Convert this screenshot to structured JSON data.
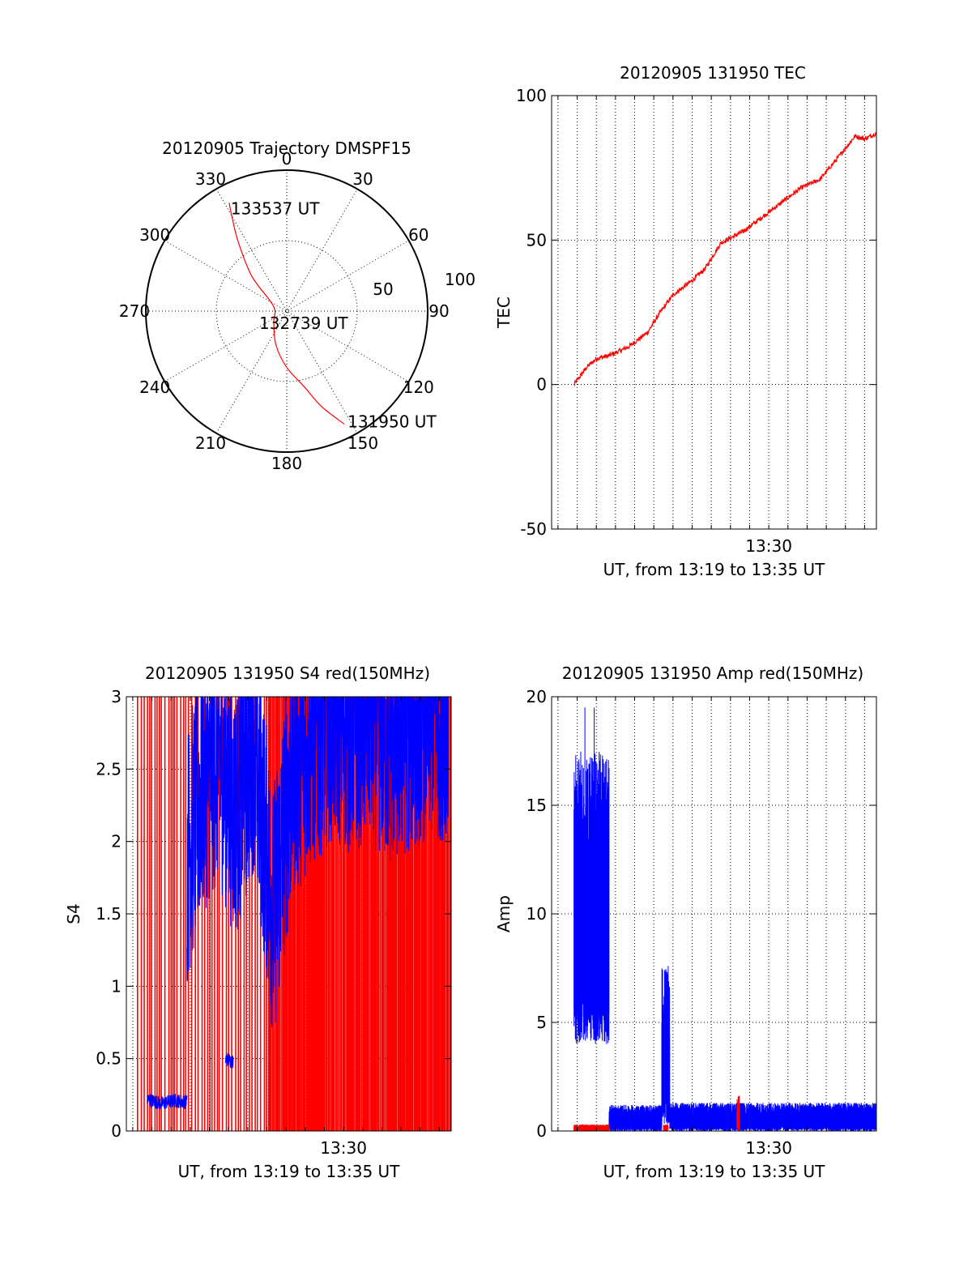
{
  "chart_data": [
    {
      "type": "polar",
      "title": "20120905 Trajectory DMSPF15",
      "azimuth_labels": [
        "0",
        "30",
        "60",
        "90",
        "120",
        "150",
        "180",
        "210",
        "240",
        "270",
        "300",
        "330"
      ],
      "radial_labels": [
        "50",
        "100"
      ],
      "rlim": [
        0,
        100
      ],
      "trajectory": {
        "color": "#ff0000",
        "points": [
          {
            "az": 153,
            "r": 90,
            "label": "131950 UT"
          },
          {
            "az": 160,
            "r": 72
          },
          {
            "az": 167,
            "r": 55
          },
          {
            "az": 180,
            "r": 40
          },
          {
            "az": 198,
            "r": 25
          },
          {
            "az": 230,
            "r": 12
          },
          {
            "az": 290,
            "r": 10,
            "label": "132739 UT"
          },
          {
            "az": 315,
            "r": 35
          },
          {
            "az": 325,
            "r": 60
          },
          {
            "az": 330,
            "r": 78
          },
          {
            "az": 332,
            "r": 87,
            "label": "133537 UT"
          }
        ]
      }
    },
    {
      "type": "line",
      "title": "20120905 131950 TEC",
      "xlabel": "UT, from 13:19 to 13:35 UT",
      "ylabel": "TEC",
      "xlim": [
        "13:18:40",
        "13:35:37"
      ],
      "ylim": [
        -50,
        100
      ],
      "yticks": [
        -50,
        0,
        50,
        100
      ],
      "xticks": [
        {
          "value": "13:30",
          "label": "13:30"
        }
      ],
      "grid": true,
      "series": [
        {
          "color": "#ff0000",
          "x": [
            "13:19:50",
            "13:20:30",
            "13:21:00",
            "13:21:40",
            "13:22:40",
            "13:23:40",
            "13:24:20",
            "13:25:00",
            "13:26:00",
            "13:26:40",
            "13:27:30",
            "13:28:40",
            "13:29:40",
            "13:30:40",
            "13:31:40",
            "13:32:40",
            "13:33:40",
            "13:34:30",
            "13:35:00",
            "13:35:37"
          ],
          "values": [
            0,
            6,
            9,
            10,
            13,
            18,
            25,
            31,
            36,
            40,
            49,
            53,
            58,
            63,
            68,
            71,
            79,
            86,
            85,
            87
          ]
        }
      ]
    },
    {
      "type": "line",
      "title": "20120905 131950 S4 red(150MHz)",
      "xlabel": "UT, from 13:19 to 13:35 UT",
      "ylabel": "S4",
      "xlim": [
        "13:18:40",
        "13:35:37"
      ],
      "ylim": [
        0,
        3
      ],
      "yticks": [
        0,
        0.5,
        1,
        1.5,
        2,
        2.5,
        3
      ],
      "ytick_labels": [
        "0",
        "0.5",
        "1",
        "1.5",
        "2",
        "2.5",
        "3"
      ],
      "xticks": [
        {
          "value": "13:30",
          "label": "13:30"
        }
      ],
      "grid": true,
      "series": [
        {
          "color": "#ff0000",
          "style": "dense vertical spikes from 0 to 3 across whole interval"
        },
        {
          "color": "#0000ff",
          "segments": [
            {
              "x": [
                "13:19:45",
                "13:20:30",
                "13:21:10",
                "13:21:50"
              ],
              "values": [
                0.22,
                0.19,
                0.21,
                0.2
              ]
            },
            {
              "x": [
                "13:23:50",
                "13:24:15"
              ],
              "values": [
                0.5,
                0.48
              ]
            },
            {
              "x": [
                "13:21:50",
                "13:22:40",
                "13:23:30",
                "13:24:20",
                "13:25:20",
                "13:26:20",
                "13:27:20",
                "13:28:20",
                "13:29:20",
                "13:30:20",
                "13:31:20",
                "13:32:20",
                "13:33:20",
                "13:34:20",
                "13:35:30"
              ],
              "values": [
                1.9,
                2.4,
                2.6,
                2.2,
                2.7,
                1.5,
                2.5,
                2.7,
                2.9,
                2.8,
                2.9,
                2.7,
                2.8,
                2.9,
                2.9
              ]
            }
          ]
        }
      ]
    },
    {
      "type": "line",
      "title": "20120905 131950 Amp red(150MHz)",
      "xlabel": "UT, from 13:19 to 13:35 UT",
      "ylabel": "Amp",
      "xlim": [
        "13:18:40",
        "13:35:37"
      ],
      "ylim": [
        0,
        20
      ],
      "yticks": [
        0,
        5,
        10,
        15,
        20
      ],
      "xticks": [
        {
          "value": "13:30",
          "label": "13:30"
        }
      ],
      "grid": true,
      "series": [
        {
          "color": "#0000ff",
          "segments": [
            {
              "x_range": [
                "13:19:50",
                "13:21:40"
              ],
              "low": 4,
              "high": 17.5,
              "peak": 19.5
            },
            {
              "x_range": [
                "13:21:40",
                "13:24:25"
              ],
              "low": 0,
              "high": 1.2
            },
            {
              "x_range": [
                "13:24:25",
                "13:24:50"
              ],
              "low": 0.3,
              "high": 7.6
            },
            {
              "x_range": [
                "13:24:50",
                "13:35:37"
              ],
              "low": 0,
              "high": 1.3
            }
          ]
        },
        {
          "color": "#ff0000",
          "segments": [
            {
              "x_range": [
                "13:19:50",
                "13:21:40"
              ],
              "low": 0,
              "high": 0.3
            },
            {
              "x_range": [
                "13:24:30",
                "13:24:45"
              ],
              "low": 0,
              "high": 0.3
            },
            {
              "x_range": [
                "13:28:20",
                "13:28:28"
              ],
              "low": 0,
              "high": 1.7
            }
          ]
        }
      ]
    }
  ]
}
